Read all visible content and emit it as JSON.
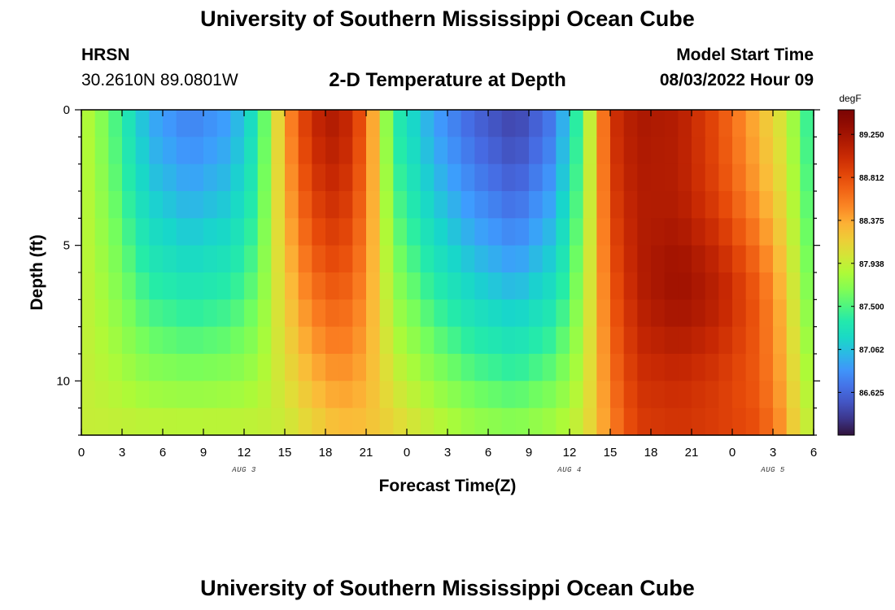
{
  "header": {
    "title": "University of Southern Mississippi Ocean Cube",
    "station": "HRSN",
    "coords": "30.2610N  89.0801W",
    "subtitle": "2-D Temperature at Depth",
    "model_label": "Model Start Time",
    "model_time": "08/03/2022 Hour 09"
  },
  "footer": {
    "title": "University of Southern Mississippi Ocean Cube"
  },
  "chart_data": {
    "type": "heatmap",
    "xlabel": "Forecast Time(Z)",
    "ylabel": "Depth (ft)",
    "x_tick_labels": [
      "0",
      "3",
      "6",
      "9",
      "12",
      "15",
      "18",
      "21",
      "0",
      "3",
      "6",
      "9",
      "12",
      "15",
      "18",
      "21",
      "0",
      "3",
      "6"
    ],
    "x_range_hours": [
      0,
      54
    ],
    "date_labels": [
      {
        "text": "AUG 3",
        "hour": 12
      },
      {
        "text": "AUG 4",
        "hour": 36
      },
      {
        "text": "AUG 5",
        "hour": 51
      }
    ],
    "y_ticks": [
      0,
      5,
      10
    ],
    "y_range_ft": [
      0,
      12
    ],
    "colorbar": {
      "unit": "degF",
      "min": 86.19,
      "max": 89.5,
      "ticks": [
        "89.250",
        "88.812",
        "88.375",
        "87.938",
        "87.500",
        "87.062",
        "86.625"
      ]
    },
    "grid": {
      "columns": 54,
      "rows": 12,
      "description": "temperature degF at each forecast hour (columns) and depth (rows)"
    },
    "anchors": [
      {
        "hour": 0,
        "surface": 87.92,
        "bottom": 87.95
      },
      {
        "hour": 2,
        "surface": 87.6,
        "bottom": 87.95
      },
      {
        "hour": 5,
        "surface": 86.95,
        "bottom": 87.95
      },
      {
        "hour": 8,
        "surface": 86.75,
        "bottom": 87.95
      },
      {
        "hour": 11,
        "surface": 86.9,
        "bottom": 87.95
      },
      {
        "hour": 13,
        "surface": 87.3,
        "bottom": 87.95
      },
      {
        "hour": 15,
        "surface": 88.4,
        "bottom": 87.95
      },
      {
        "hour": 17,
        "surface": 89.05,
        "bottom": 88.1
      },
      {
        "hour": 19,
        "surface": 89.2,
        "bottom": 88.25
      },
      {
        "hour": 21,
        "surface": 88.7,
        "bottom": 88.25
      },
      {
        "hour": 23,
        "surface": 87.4,
        "bottom": 88.15
      },
      {
        "hour": 26,
        "surface": 86.9,
        "bottom": 87.95
      },
      {
        "hour": 29,
        "surface": 86.6,
        "bottom": 87.8
      },
      {
        "hour": 32,
        "surface": 86.4,
        "bottom": 87.75
      },
      {
        "hour": 35,
        "surface": 86.75,
        "bottom": 87.85
      },
      {
        "hour": 37,
        "surface": 87.6,
        "bottom": 88.0
      },
      {
        "hour": 39,
        "surface": 88.95,
        "bottom": 88.5
      },
      {
        "hour": 41,
        "surface": 89.2,
        "bottom": 88.9
      },
      {
        "hour": 44,
        "surface": 89.15,
        "bottom": 88.95
      },
      {
        "hour": 47,
        "surface": 88.8,
        "bottom": 88.9
      },
      {
        "hour": 50,
        "surface": 88.3,
        "bottom": 88.8
      },
      {
        "hour": 52,
        "surface": 87.95,
        "bottom": 88.4
      },
      {
        "hour": 53,
        "surface": 87.6,
        "bottom": 88.0
      },
      {
        "hour": 54,
        "surface": 87.3,
        "bottom": 87.95
      }
    ]
  }
}
